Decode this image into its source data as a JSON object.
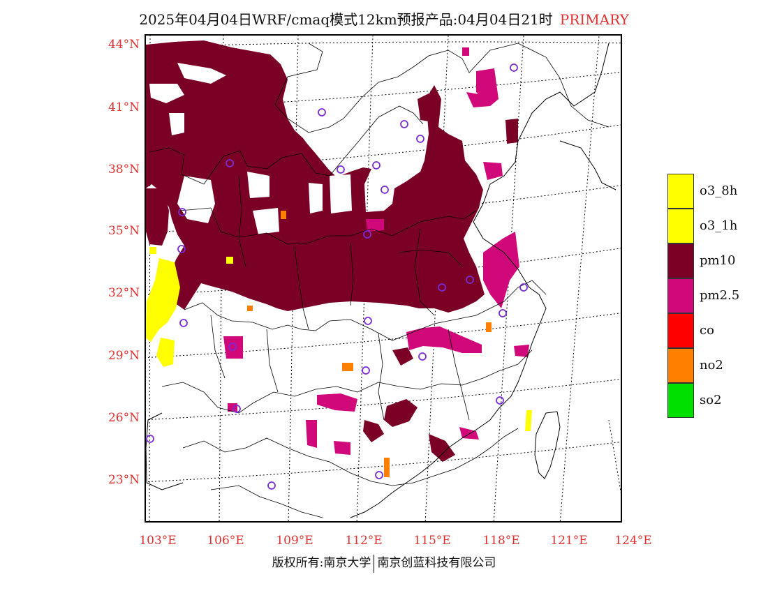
{
  "title": {
    "text": "2025年04月04日WRF/cmaq模式12km预报产品:04月04日21时",
    "highlight": "PRIMARY"
  },
  "axes": {
    "lat_labels": [
      "44°N",
      "41°N",
      "38°N",
      "35°N",
      "32°N",
      "29°N",
      "26°N",
      "23°N"
    ],
    "lon_labels": [
      "103°E",
      "106°E",
      "109°E",
      "112°E",
      "115°E",
      "118°E",
      "121°E",
      "124°E"
    ]
  },
  "legend": {
    "items": [
      {
        "label": "o3_8h",
        "color": "#ffff00"
      },
      {
        "label": "o3_1h",
        "color": "#ffff00"
      },
      {
        "label": "pm10",
        "color": "#7b0025"
      },
      {
        "label": "pm2.5",
        "color": "#d0087a"
      },
      {
        "label": "co",
        "color": "#ff0000"
      },
      {
        "label": "no2",
        "color": "#ff8000"
      },
      {
        "label": "so2",
        "color": "#00e000"
      }
    ]
  },
  "footer": {
    "left": "版权所有:南京大学",
    "right": "南京创蓝科技有限公司"
  },
  "colors": {
    "pm10": "#7b0025",
    "pm25": "#d0087a",
    "o3": "#ffff00",
    "no2": "#ff8000",
    "station": "#7a2cd6",
    "label": "#e03030"
  }
}
